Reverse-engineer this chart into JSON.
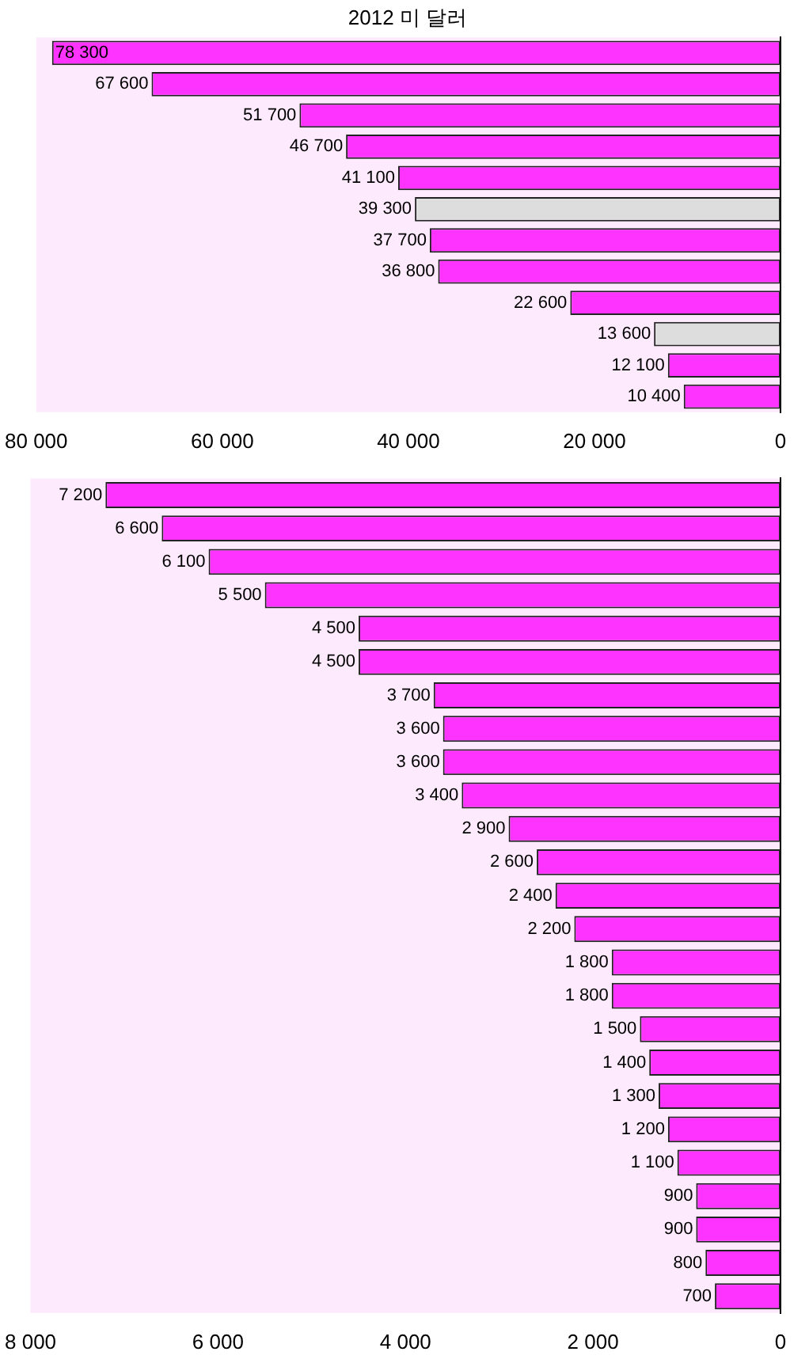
{
  "chart_data": [
    {
      "type": "bar",
      "orientation": "horizontal",
      "title": "2012 미 달러",
      "categories": [
        null,
        null,
        null,
        null,
        null,
        null,
        null,
        null,
        null,
        null,
        null,
        null
      ],
      "values": [
        78300,
        67600,
        51700,
        46700,
        41100,
        39300,
        37700,
        36800,
        22600,
        13600,
        12100,
        10400
      ],
      "value_labels": [
        "78 300",
        "67 600",
        "51 700",
        "46 700",
        "41 100",
        "39 300",
        "37 700",
        "36 800",
        "22 600",
        "13 600",
        "12 100",
        "10 400"
      ],
      "colors": [
        "#ff33ff",
        "#ff33ff",
        "#ff33ff",
        "#ff33ff",
        "#ff33ff",
        "#dddddd",
        "#ff33ff",
        "#ff33ff",
        "#ff33ff",
        "#dddddd",
        "#ff33ff",
        "#ff33ff"
      ],
      "xlim": [
        80000,
        0
      ],
      "xticks": [
        {
          "value": 80000,
          "label": "80 000"
        },
        {
          "value": 60000,
          "label": "60 000"
        },
        {
          "value": 40000,
          "label": "40 000"
        },
        {
          "value": 20000,
          "label": "20 000"
        },
        0
      ],
      "grid": false,
      "legend": false
    },
    {
      "type": "bar",
      "orientation": "horizontal",
      "categories": [
        null,
        null,
        null,
        null,
        null,
        null,
        null,
        null,
        null,
        null,
        null,
        null,
        null,
        null,
        null,
        null,
        null,
        null,
        null,
        null,
        null,
        null,
        null,
        null,
        null
      ],
      "values": [
        7200,
        6600,
        6100,
        5500,
        4500,
        4500,
        3700,
        3600,
        3600,
        3400,
        2900,
        2600,
        2400,
        2200,
        1800,
        1800,
        1500,
        1400,
        1300,
        1200,
        1100,
        900,
        900,
        800,
        700
      ],
      "value_labels": [
        "7 200",
        "6 600",
        "6 100",
        "5 500",
        "4 500",
        "4 500",
        "3 700",
        "3 600",
        "3 600",
        "3 400",
        "2 900",
        "2 600",
        "2 400",
        "2 200",
        "1 800",
        "1 800",
        "1 500",
        "1 400",
        "1 300",
        "1 200",
        "1 100",
        "900",
        "900",
        "800",
        "700"
      ],
      "color": "#ff33ff",
      "xlim": [
        8000,
        0
      ],
      "xticks": [
        {
          "value": 8000,
          "label": "8 000"
        },
        {
          "value": 6000,
          "label": "6 000"
        },
        {
          "value": 4000,
          "label": "4 000"
        },
        {
          "value": 2000,
          "label": "2 000"
        },
        0
      ],
      "grid": false,
      "legend": false
    }
  ]
}
